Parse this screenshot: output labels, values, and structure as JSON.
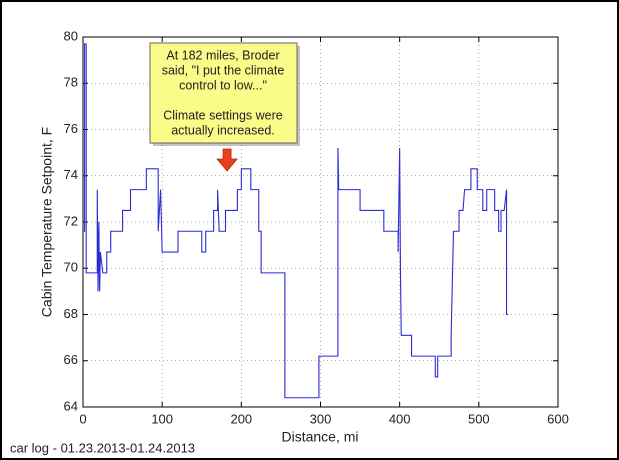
{
  "chart_data": {
    "type": "line",
    "x_label": "Distance, mi",
    "y_label": "Cabin Temperature Setpoint, F",
    "footer": "car log - 01.23.2013-01.24.2013",
    "annotation": {
      "paragraphs": [
        [
          "At 182 miles, Broder",
          "said, \"I put the climate",
          "control to low...\""
        ],
        [
          "Climate settings were",
          "actually increased."
        ]
      ],
      "x": 182
    },
    "color": "#2b2bd6",
    "grid": true,
    "xlim": [
      0,
      600
    ],
    "xticks": [
      0,
      100,
      200,
      300,
      400,
      500,
      600
    ],
    "ylim": [
      64,
      80
    ],
    "yticks": [
      64,
      66,
      68,
      70,
      72,
      74,
      76,
      78,
      80
    ],
    "x": [
      0,
      2,
      2,
      4,
      4,
      18,
      18,
      19,
      20,
      21,
      22,
      25,
      30,
      30,
      35,
      35,
      50,
      50,
      60,
      60,
      80,
      80,
      95,
      95,
      98,
      100,
      120,
      120,
      150,
      150,
      155,
      155,
      165,
      165,
      170,
      170,
      172,
      180,
      180,
      195,
      195,
      200,
      200,
      212,
      212,
      222,
      222,
      225,
      225,
      255,
      255,
      298,
      298,
      322,
      322,
      323,
      350,
      350,
      380,
      380,
      398,
      398,
      400,
      401,
      402,
      415,
      415,
      445,
      445,
      448,
      448,
      465,
      465,
      468,
      475,
      475,
      480,
      482,
      490,
      490,
      498,
      498,
      505,
      505,
      510,
      510,
      520,
      520,
      525,
      525,
      528,
      528,
      532,
      535,
      535,
      537
    ],
    "values": [
      71.6,
      71.6,
      79.7,
      79.7,
      69.8,
      69.8,
      73.4,
      69,
      72,
      69,
      70.7,
      69.8,
      69.8,
      70.7,
      70.7,
      71.6,
      71.6,
      72.5,
      72.5,
      73.4,
      73.4,
      74.3,
      74.3,
      71.6,
      73.4,
      70.7,
      70.7,
      71.6,
      71.6,
      70.7,
      70.7,
      71.6,
      71.6,
      72.5,
      72.5,
      73.4,
      71.6,
      71.6,
      72.5,
      72.5,
      73.4,
      73.4,
      74.3,
      74.3,
      73.4,
      73.4,
      71.6,
      71.6,
      69.8,
      69.8,
      64.4,
      64.4,
      66.2,
      66.2,
      75.2,
      73.4,
      73.4,
      72.5,
      72.5,
      71.6,
      71.6,
      70.7,
      75.2,
      69.8,
      67.1,
      67.1,
      66.2,
      66.2,
      65.3,
      65.3,
      66.2,
      66.2,
      67.1,
      71.6,
      71.6,
      72.5,
      72.5,
      73.4,
      73.4,
      74.3,
      74.3,
      73.4,
      73.4,
      72.5,
      72.5,
      73.4,
      73.4,
      72.5,
      72.5,
      71.6,
      71.6,
      72.5,
      72.5,
      73.4,
      68,
      68
    ]
  }
}
